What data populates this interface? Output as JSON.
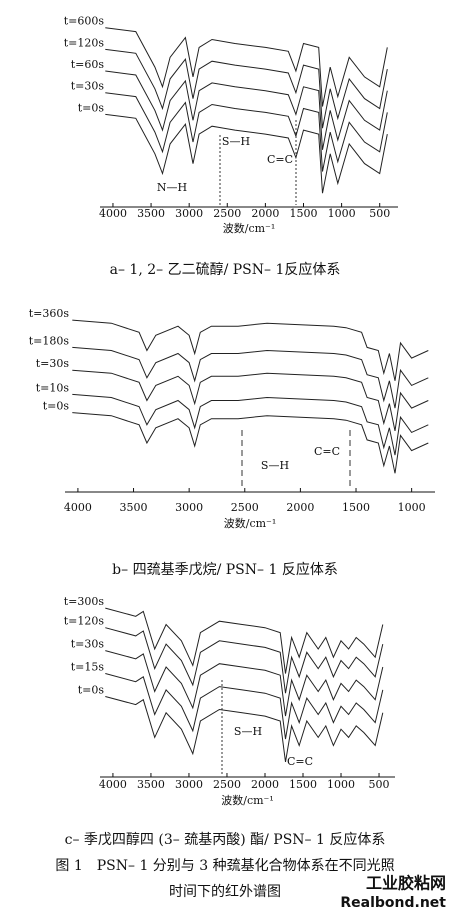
{
  "chart_data": [
    {
      "type": "line",
      "x_label": "波数/cm⁻¹",
      "caption": "a– 1, 2– 乙二硫醇/ PSN– 1反应体系",
      "xlim": [
        4170,
        260
      ],
      "xticks": [
        4000,
        3500,
        3000,
        2500,
        2000,
        1500,
        1000,
        500
      ],
      "ylim": [
        0,
        100
      ],
      "annotations": [
        "N—H",
        "S—H",
        "C=C"
      ],
      "x": [
        4100,
        3700,
        3450,
        3350,
        3250,
        3050,
        2950,
        2870,
        2700,
        2400,
        2000,
        1700,
        1600,
        1500,
        1300,
        1250,
        1150,
        1050,
        900,
        700,
        500,
        400
      ],
      "series": [
        {
          "name": "t=600s",
          "color": "#222222",
          "values": [
            90,
            88,
            70,
            60,
            75,
            85,
            65,
            80,
            84,
            82,
            80,
            78,
            68,
            82,
            80,
            50,
            70,
            55,
            75,
            65,
            60,
            80
          ]
        },
        {
          "name": "t=120s",
          "color": "#222222",
          "values": [
            79,
            77,
            59,
            49,
            64,
            74,
            54,
            69,
            73,
            71,
            69,
            67,
            57,
            71,
            69,
            39,
            59,
            44,
            64,
            54,
            49,
            69
          ]
        },
        {
          "name": "t=60s",
          "color": "#222222",
          "values": [
            68,
            66,
            48,
            38,
            53,
            63,
            43,
            58,
            62,
            60,
            58,
            56,
            46,
            60,
            58,
            28,
            48,
            33,
            53,
            43,
            38,
            58
          ]
        },
        {
          "name": "t=30s",
          "color": "#222222",
          "values": [
            57,
            55,
            37,
            27,
            42,
            52,
            32,
            47,
            51,
            49,
            47,
            45,
            35,
            49,
            47,
            17,
            37,
            22,
            42,
            32,
            27,
            47
          ]
        },
        {
          "name": "t=0s",
          "color": "#222222",
          "values": [
            46,
            44,
            26,
            16,
            31,
            41,
            21,
            36,
            40,
            38,
            36,
            34,
            24,
            38,
            36,
            6,
            26,
            11,
            31,
            21,
            16,
            36
          ]
        }
      ]
    },
    {
      "type": "line",
      "x_label": "波数/cm⁻¹",
      "caption": "b– 四巯基季戊烷/ PSN– 1 反应体系",
      "xlim": [
        4116,
        790
      ],
      "xticks": [
        4000,
        3500,
        3000,
        2500,
        2000,
        1500,
        1000
      ],
      "ylim": [
        -20,
        100
      ],
      "annotations": [
        "S—H",
        "C=C"
      ],
      "x": [
        4050,
        3700,
        3450,
        3380,
        3300,
        3100,
        3000,
        2950,
        2900,
        2800,
        2560,
        2300,
        2000,
        1700,
        1590,
        1450,
        1400,
        1300,
        1250,
        1200,
        1150,
        1100,
        1000,
        850
      ],
      "series": [
        {
          "name": "t=360s",
          "color": "#222222",
          "values": [
            92,
            90,
            84,
            72,
            82,
            88,
            82,
            70,
            84,
            88,
            88,
            90,
            89,
            88,
            87,
            84,
            74,
            72,
            57,
            70,
            52,
            77,
            67,
            72
          ]
        },
        {
          "name": "t=180s",
          "color": "#222222",
          "values": [
            74,
            72,
            66,
            54,
            64,
            70,
            64,
            52,
            66,
            70,
            70,
            72,
            71,
            70,
            69,
            66,
            56,
            54,
            39,
            52,
            34,
            59,
            49,
            54
          ]
        },
        {
          "name": "t=30s",
          "color": "#222222",
          "values": [
            59,
            57,
            51,
            39,
            49,
            55,
            49,
            37,
            51,
            55,
            55,
            57,
            56,
            55,
            54,
            51,
            41,
            39,
            24,
            37,
            19,
            44,
            34,
            39
          ]
        },
        {
          "name": "t=10s",
          "color": "#222222",
          "values": [
            43,
            41,
            35,
            23,
            33,
            39,
            33,
            21,
            35,
            39,
            39,
            41,
            40,
            39,
            38,
            35,
            25,
            23,
            8,
            21,
            3,
            28,
            18,
            23
          ]
        },
        {
          "name": "t=0s",
          "color": "#222222",
          "values": [
            31,
            29,
            23,
            11,
            21,
            27,
            21,
            9,
            23,
            27,
            27,
            29,
            28,
            27,
            26,
            23,
            13,
            11,
            -4,
            9,
            -9,
            16,
            6,
            11
          ]
        }
      ]
    },
    {
      "type": "line",
      "x_label": "波数/cm⁻¹",
      "caption": "c– 季戊四醇四 (3– 巯基丙酸) 酯/ PSN– 1 反应体系",
      "xlim": [
        4170,
        290
      ],
      "xticks": [
        4000,
        3500,
        3000,
        2500,
        2000,
        1500,
        1000,
        500
      ],
      "ylim": [
        -10,
        100
      ],
      "annotations": [
        "S—H",
        "C=C"
      ],
      "x": [
        4100,
        3700,
        3600,
        3450,
        3300,
        3100,
        2950,
        2850,
        2600,
        2300,
        2000,
        1800,
        1730,
        1650,
        1550,
        1450,
        1300,
        1200,
        1100,
        1000,
        900,
        800,
        700,
        550,
        450
      ],
      "series": [
        {
          "name": "t=300s",
          "color": "#222222",
          "values": [
            92,
            87,
            90,
            67,
            82,
            72,
            57,
            77,
            84,
            82,
            80,
            77,
            52,
            74,
            62,
            77,
            67,
            74,
            62,
            72,
            67,
            74,
            70,
            62,
            82
          ]
        },
        {
          "name": "t=120s",
          "color": "#222222",
          "values": [
            80,
            75,
            78,
            55,
            70,
            60,
            45,
            65,
            72,
            70,
            68,
            65,
            40,
            62,
            50,
            65,
            55,
            62,
            50,
            60,
            55,
            62,
            58,
            50,
            70
          ]
        },
        {
          "name": "t=30s",
          "color": "#222222",
          "values": [
            66,
            61,
            64,
            41,
            56,
            46,
            31,
            51,
            58,
            56,
            54,
            51,
            26,
            48,
            36,
            51,
            41,
            48,
            36,
            46,
            41,
            48,
            44,
            36,
            56
          ]
        },
        {
          "name": "t=15s",
          "color": "#222222",
          "values": [
            52,
            47,
            50,
            27,
            42,
            32,
            17,
            37,
            44,
            42,
            40,
            37,
            12,
            34,
            22,
            37,
            27,
            34,
            22,
            32,
            27,
            34,
            30,
            22,
            42
          ]
        },
        {
          "name": "t=0s",
          "color": "#222222",
          "values": [
            38,
            33,
            36,
            13,
            28,
            18,
            3,
            23,
            30,
            28,
            26,
            23,
            -2,
            20,
            8,
            23,
            13,
            20,
            8,
            18,
            13,
            20,
            16,
            8,
            28
          ]
        }
      ]
    }
  ],
  "figure_caption": [
    "图 1　PSN– 1 分别与 3 种巯基化合物体系在不同光照",
    "时间下的红外谱图"
  ],
  "watermark": [
    "工业胶粘网",
    "Realbond.net"
  ]
}
